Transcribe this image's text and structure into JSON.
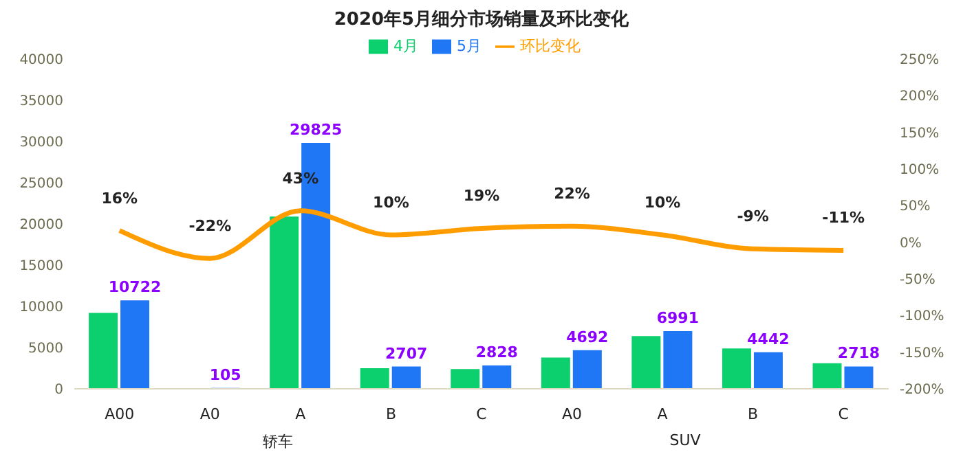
{
  "chart_data": {
    "type": "bar",
    "title": "2020年5月细分市场销量及环比变化",
    "categories": [
      "A00",
      "A0",
      "A",
      "B",
      "C",
      "A0",
      "A",
      "B",
      "C"
    ],
    "series": [
      {
        "name": "4月",
        "color": "#0ccf6e",
        "values": [
          9200,
          null,
          20900,
          2500,
          2400,
          3800,
          6400,
          4900,
          3100
        ]
      },
      {
        "name": "5月",
        "color": "#1f77f5",
        "values": [
          10722,
          105,
          29825,
          2707,
          2828,
          4692,
          6991,
          4442,
          2718
        ],
        "value_labels": [
          "10722",
          "105",
          "29825",
          "2707",
          "2828",
          "4692",
          "6991",
          "4442",
          "2718"
        ]
      },
      {
        "name": "环比变化",
        "type": "line",
        "axis": "y2",
        "color": "#ff9d00",
        "values": [
          16,
          -22,
          43,
          10,
          19,
          22,
          10,
          -9,
          -11
        ],
        "value_labels": [
          "16%",
          "-22%",
          "43%",
          "10%",
          "19%",
          "22%",
          "10%",
          "-9%",
          "-11%"
        ]
      }
    ],
    "ylim": [
      0,
      40000
    ],
    "yticks": [
      0,
      5000,
      10000,
      15000,
      20000,
      25000,
      30000,
      35000,
      40000
    ],
    "y2lim": [
      -200,
      250
    ],
    "y2ticks": [
      {
        "value": -200,
        "label": "-200%"
      },
      {
        "value": -150,
        "label": "-150%"
      },
      {
        "value": -100,
        "label": "-100%"
      },
      {
        "value": -50,
        "label": "-50%"
      },
      {
        "value": 0,
        "label": "0%"
      },
      {
        "value": 50,
        "label": "50%"
      },
      {
        "value": 100,
        "label": "100%"
      },
      {
        "value": 150,
        "label": "150%"
      },
      {
        "value": 200,
        "label": "200%"
      },
      {
        "value": 250,
        "label": "250%"
      }
    ],
    "annotations": [
      "轿车",
      "SUV"
    ],
    "grid": false,
    "legend": "top",
    "marker": "none",
    "line_style": "solid"
  }
}
